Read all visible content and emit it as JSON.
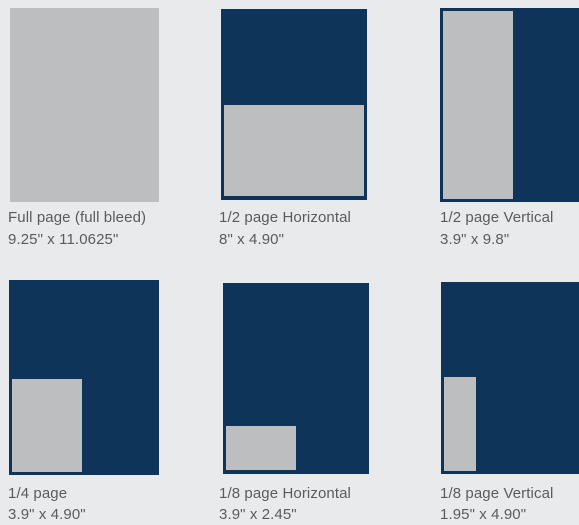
{
  "ad_sizes": [
    {
      "name": "Full page (full bleed)",
      "dimensions": "9.25\" x 11.0625\""
    },
    {
      "name": "1/2 page Horizontal",
      "dimensions": "8\" x 4.90\""
    },
    {
      "name": "1/2 page Vertical",
      "dimensions": "3.9\" x 9.8\""
    },
    {
      "name": "1/4 page",
      "dimensions": "3.9\" x 4.90\""
    },
    {
      "name": "1/8 page Horizontal",
      "dimensions": "3.9\" x 2.45\""
    },
    {
      "name": "1/8 page Vertical",
      "dimensions": "1.95\" x 4.90\""
    }
  ],
  "colors": {
    "page": "#0f3459",
    "ad_area": "#bdbec0",
    "background": "#e9eaeb",
    "text": "#5a5b5d"
  }
}
